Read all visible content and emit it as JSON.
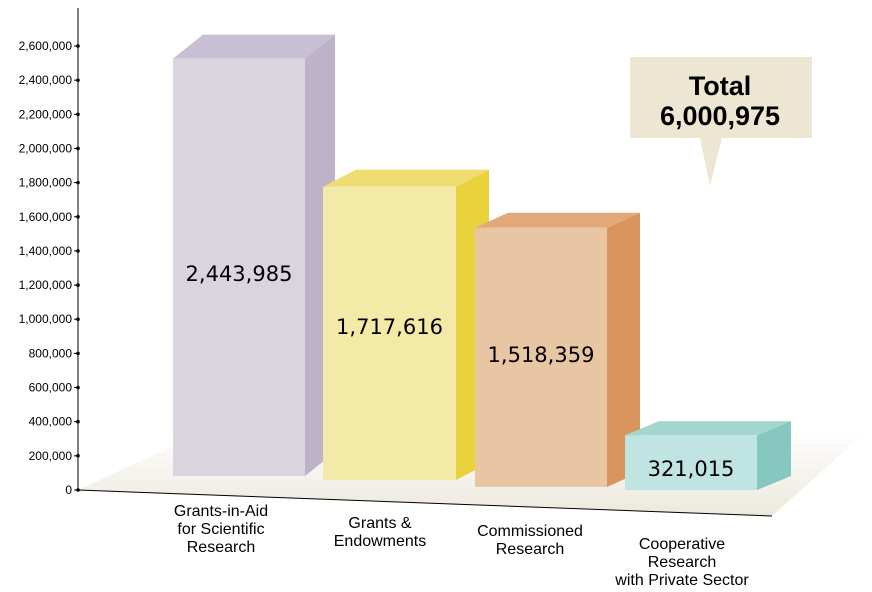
{
  "chart_data": {
    "type": "bar",
    "categories": [
      "Grants-in-Aid for Scientific Research",
      "Grants & Endowments",
      "Commissioned Research",
      "Cooperative Research with Private Sector"
    ],
    "category_lines": [
      [
        "Grants-in-Aid",
        "for Scientific",
        "Research"
      ],
      [
        "Grants &",
        "Endowments"
      ],
      [
        "Commissioned",
        "Research"
      ],
      [
        "Cooperative",
        "Research",
        "with Private Sector"
      ]
    ],
    "values": [
      2443985,
      1717616,
      1518359,
      321015
    ],
    "value_labels": [
      "2,443,985",
      "1,717,616",
      "1,518,359",
      "321,015"
    ],
    "yticks": [
      0,
      200000,
      400000,
      600000,
      800000,
      1000000,
      1200000,
      1400000,
      1600000,
      1800000,
      2000000,
      2200000,
      2400000,
      2600000
    ],
    "ytick_labels": [
      "0",
      "200,000",
      "400,000",
      "600,000",
      "800,000",
      "1,000,000",
      "1,200,000",
      "1,400,000",
      "1,600,000",
      "1,800,000",
      "2,000,000",
      "2,200,000",
      "2,400,000",
      "2,600,000"
    ],
    "ylim": [
      0,
      2600000
    ],
    "bar_colors": [
      {
        "front": "#d9d4de",
        "side": "#bdb2c8",
        "top": "#c8bfd2"
      },
      {
        "front": "#f3eaa7",
        "side": "#e9d23c",
        "top": "#eede72"
      },
      {
        "front": "#e9c6a3",
        "side": "#d9955d",
        "top": "#e1a979"
      },
      {
        "front": "#bfe4e1",
        "side": "#86c7c0",
        "top": "#a3d6d0"
      }
    ],
    "annotation": {
      "line1": "Total",
      "line2": "6,000,975",
      "background": "#ede6d2"
    },
    "floor_color": "#f3f0e7",
    "grid": false,
    "legend": "none",
    "three_d": true
  }
}
